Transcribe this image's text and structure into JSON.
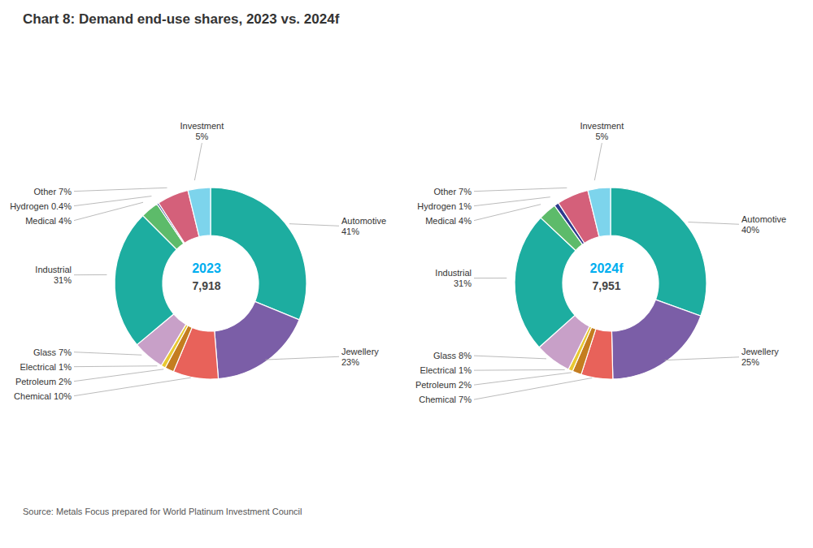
{
  "title": "Chart 8: Demand end-use shares, 2023 vs. 2024f",
  "annotations": [
    "Source: Metals Focus prepared for World Platinum Investment Council"
  ],
  "chart_data": [
    {
      "type": "pie",
      "title": "2023",
      "subtitle": "7,918",
      "categories": [
        "Automotive",
        "Jewellery",
        "Chemical",
        "Petroleum",
        "Electrical",
        "Glass",
        "Industrial",
        "Medical",
        "Hydrogen",
        "Other",
        "Investment"
      ],
      "values": [
        41,
        23,
        10,
        2,
        1,
        7,
        31,
        4,
        0.4,
        7,
        5
      ],
      "value_labels": [
        "Automotive\n41%",
        "Jewellery\n23%",
        "Chemical 10%",
        "Petroleum 2%",
        "Electrical 1%",
        "Glass 7%",
        "Industrial\n31%",
        "Medical 4%",
        "Hydrogen 0.4%",
        "Other 7%",
        "Investment\n5%"
      ],
      "colors": [
        "#1DADA0",
        "#7B5EA7",
        "#E8625A",
        "#C47D20",
        "#E8C832",
        "#C8A0C8",
        "#1DADA0",
        "#5DBB6A",
        "#2E3A8C",
        "#D4607A",
        "#7DD4EC"
      ],
      "data_labels": true
    },
    {
      "type": "pie",
      "title": "2024f",
      "subtitle": "7,951",
      "categories": [
        "Automotive",
        "Jewellery",
        "Chemical",
        "Petroleum",
        "Electrical",
        "Glass",
        "Industrial",
        "Medical",
        "Hydrogen",
        "Other",
        "Investment"
      ],
      "values": [
        40,
        25,
        7,
        2,
        1,
        8,
        31,
        4,
        1,
        7,
        5
      ],
      "value_labels": [
        "Automotive\n40%",
        "Jewellery\n25%",
        "Chemical 7%",
        "Petroleum 2%",
        "Electrical 1%",
        "Glass 8%",
        "Industrial\n31%",
        "Medical 4%",
        "Hydrogen 1%",
        "Other 7%",
        "Investment\n5%"
      ],
      "colors": [
        "#1DADA0",
        "#7B5EA7",
        "#E8625A",
        "#C47D20",
        "#E8C832",
        "#C8A0C8",
        "#1DADA0",
        "#5DBB6A",
        "#2E3A8C",
        "#D4607A",
        "#7DD4EC"
      ],
      "data_labels": true
    }
  ]
}
